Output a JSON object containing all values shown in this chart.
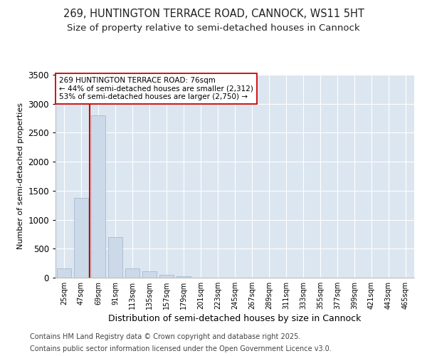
{
  "title_line1": "269, HUNTINGTON TERRACE ROAD, CANNOCK, WS11 5HT",
  "title_line2": "Size of property relative to semi-detached houses in Cannock",
  "xlabel": "Distribution of semi-detached houses by size in Cannock",
  "ylabel": "Number of semi-detached properties",
  "categories": [
    "25sqm",
    "47sqm",
    "69sqm",
    "91sqm",
    "113sqm",
    "135sqm",
    "157sqm",
    "179sqm",
    "201sqm",
    "223sqm",
    "245sqm",
    "267sqm",
    "289sqm",
    "311sqm",
    "333sqm",
    "355sqm",
    "377sqm",
    "399sqm",
    "421sqm",
    "443sqm",
    "465sqm"
  ],
  "values": [
    155,
    1380,
    2800,
    700,
    160,
    110,
    55,
    30,
    0,
    0,
    0,
    0,
    0,
    0,
    0,
    0,
    0,
    0,
    0,
    0,
    0
  ],
  "bar_color": "#ccd9e8",
  "bar_edge_color": "#9ab5cc",
  "vline_x": 1.5,
  "vline_color": "#cc0000",
  "annotation_text": "269 HUNTINGTON TERRACE ROAD: 76sqm\n← 44% of semi-detached houses are smaller (2,312)\n53% of semi-detached houses are larger (2,750) →",
  "annotation_box_color": "#ffffff",
  "annotation_box_edge": "#cc0000",
  "ylim": [
    0,
    3500
  ],
  "yticks": [
    0,
    500,
    1000,
    1500,
    2000,
    2500,
    3000,
    3500
  ],
  "background_color": "#ffffff",
  "plot_background": "#dce6f0",
  "footer_line1": "Contains HM Land Registry data © Crown copyright and database right 2025.",
  "footer_line2": "Contains public sector information licensed under the Open Government Licence v3.0.",
  "title_fontsize": 10.5,
  "subtitle_fontsize": 9.5,
  "annotation_fontsize": 7.5,
  "footer_fontsize": 7.0,
  "ylabel_fontsize": 8,
  "xlabel_fontsize": 9
}
